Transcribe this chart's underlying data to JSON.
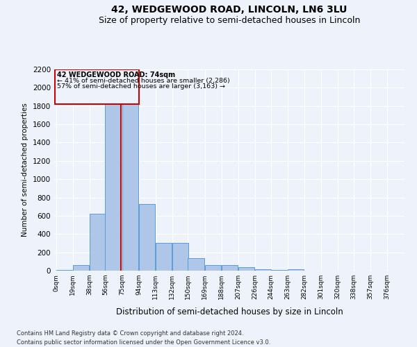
{
  "title": "42, WEDGEWOOD ROAD, LINCOLN, LN6 3LU",
  "subtitle": "Size of property relative to semi-detached houses in Lincoln",
  "xlabel": "Distribution of semi-detached houses by size in Lincoln",
  "ylabel": "Number of semi-detached properties",
  "annotation_title": "42 WEDGEWOOD ROAD: 74sqm",
  "annotation_line1": "← 41% of semi-detached houses are smaller (2,286)",
  "annotation_line2": "57% of semi-detached houses are larger (3,163) →",
  "footer_line1": "Contains HM Land Registry data © Crown copyright and database right 2024.",
  "footer_line2": "Contains public sector information licensed under the Open Government Licence v3.0.",
  "property_size_sqm": 74,
  "bin_starts": [
    0,
    19,
    38,
    56,
    75,
    94,
    113,
    132,
    150,
    169,
    188,
    207,
    226,
    244,
    263,
    282,
    301,
    320,
    338,
    357,
    376
  ],
  "bin_labels": [
    "0sqm",
    "19sqm",
    "38sqm",
    "56sqm",
    "75sqm",
    "94sqm",
    "113sqm",
    "132sqm",
    "150sqm",
    "169sqm",
    "188sqm",
    "207sqm",
    "226sqm",
    "244sqm",
    "263sqm",
    "282sqm",
    "301sqm",
    "320sqm",
    "338sqm",
    "357sqm",
    "376sqm"
  ],
  "bar_heights": [
    10,
    60,
    620,
    1820,
    1820,
    730,
    300,
    300,
    135,
    60,
    60,
    40,
    15,
    5,
    15,
    0,
    0,
    0,
    0,
    0
  ],
  "bar_color": "#aec6e8",
  "bar_edge_color": "#5b9bd5",
  "vline_color": "#cc0000",
  "vline_x": 74,
  "box_edge_color": "#cc0000",
  "ylim": [
    0,
    2200
  ],
  "yticks": [
    0,
    200,
    400,
    600,
    800,
    1000,
    1200,
    1400,
    1600,
    1800,
    2000,
    2200
  ],
  "bg_color": "#eef3fb",
  "grid_color": "#ffffff",
  "title_fontsize": 10,
  "subtitle_fontsize": 9
}
